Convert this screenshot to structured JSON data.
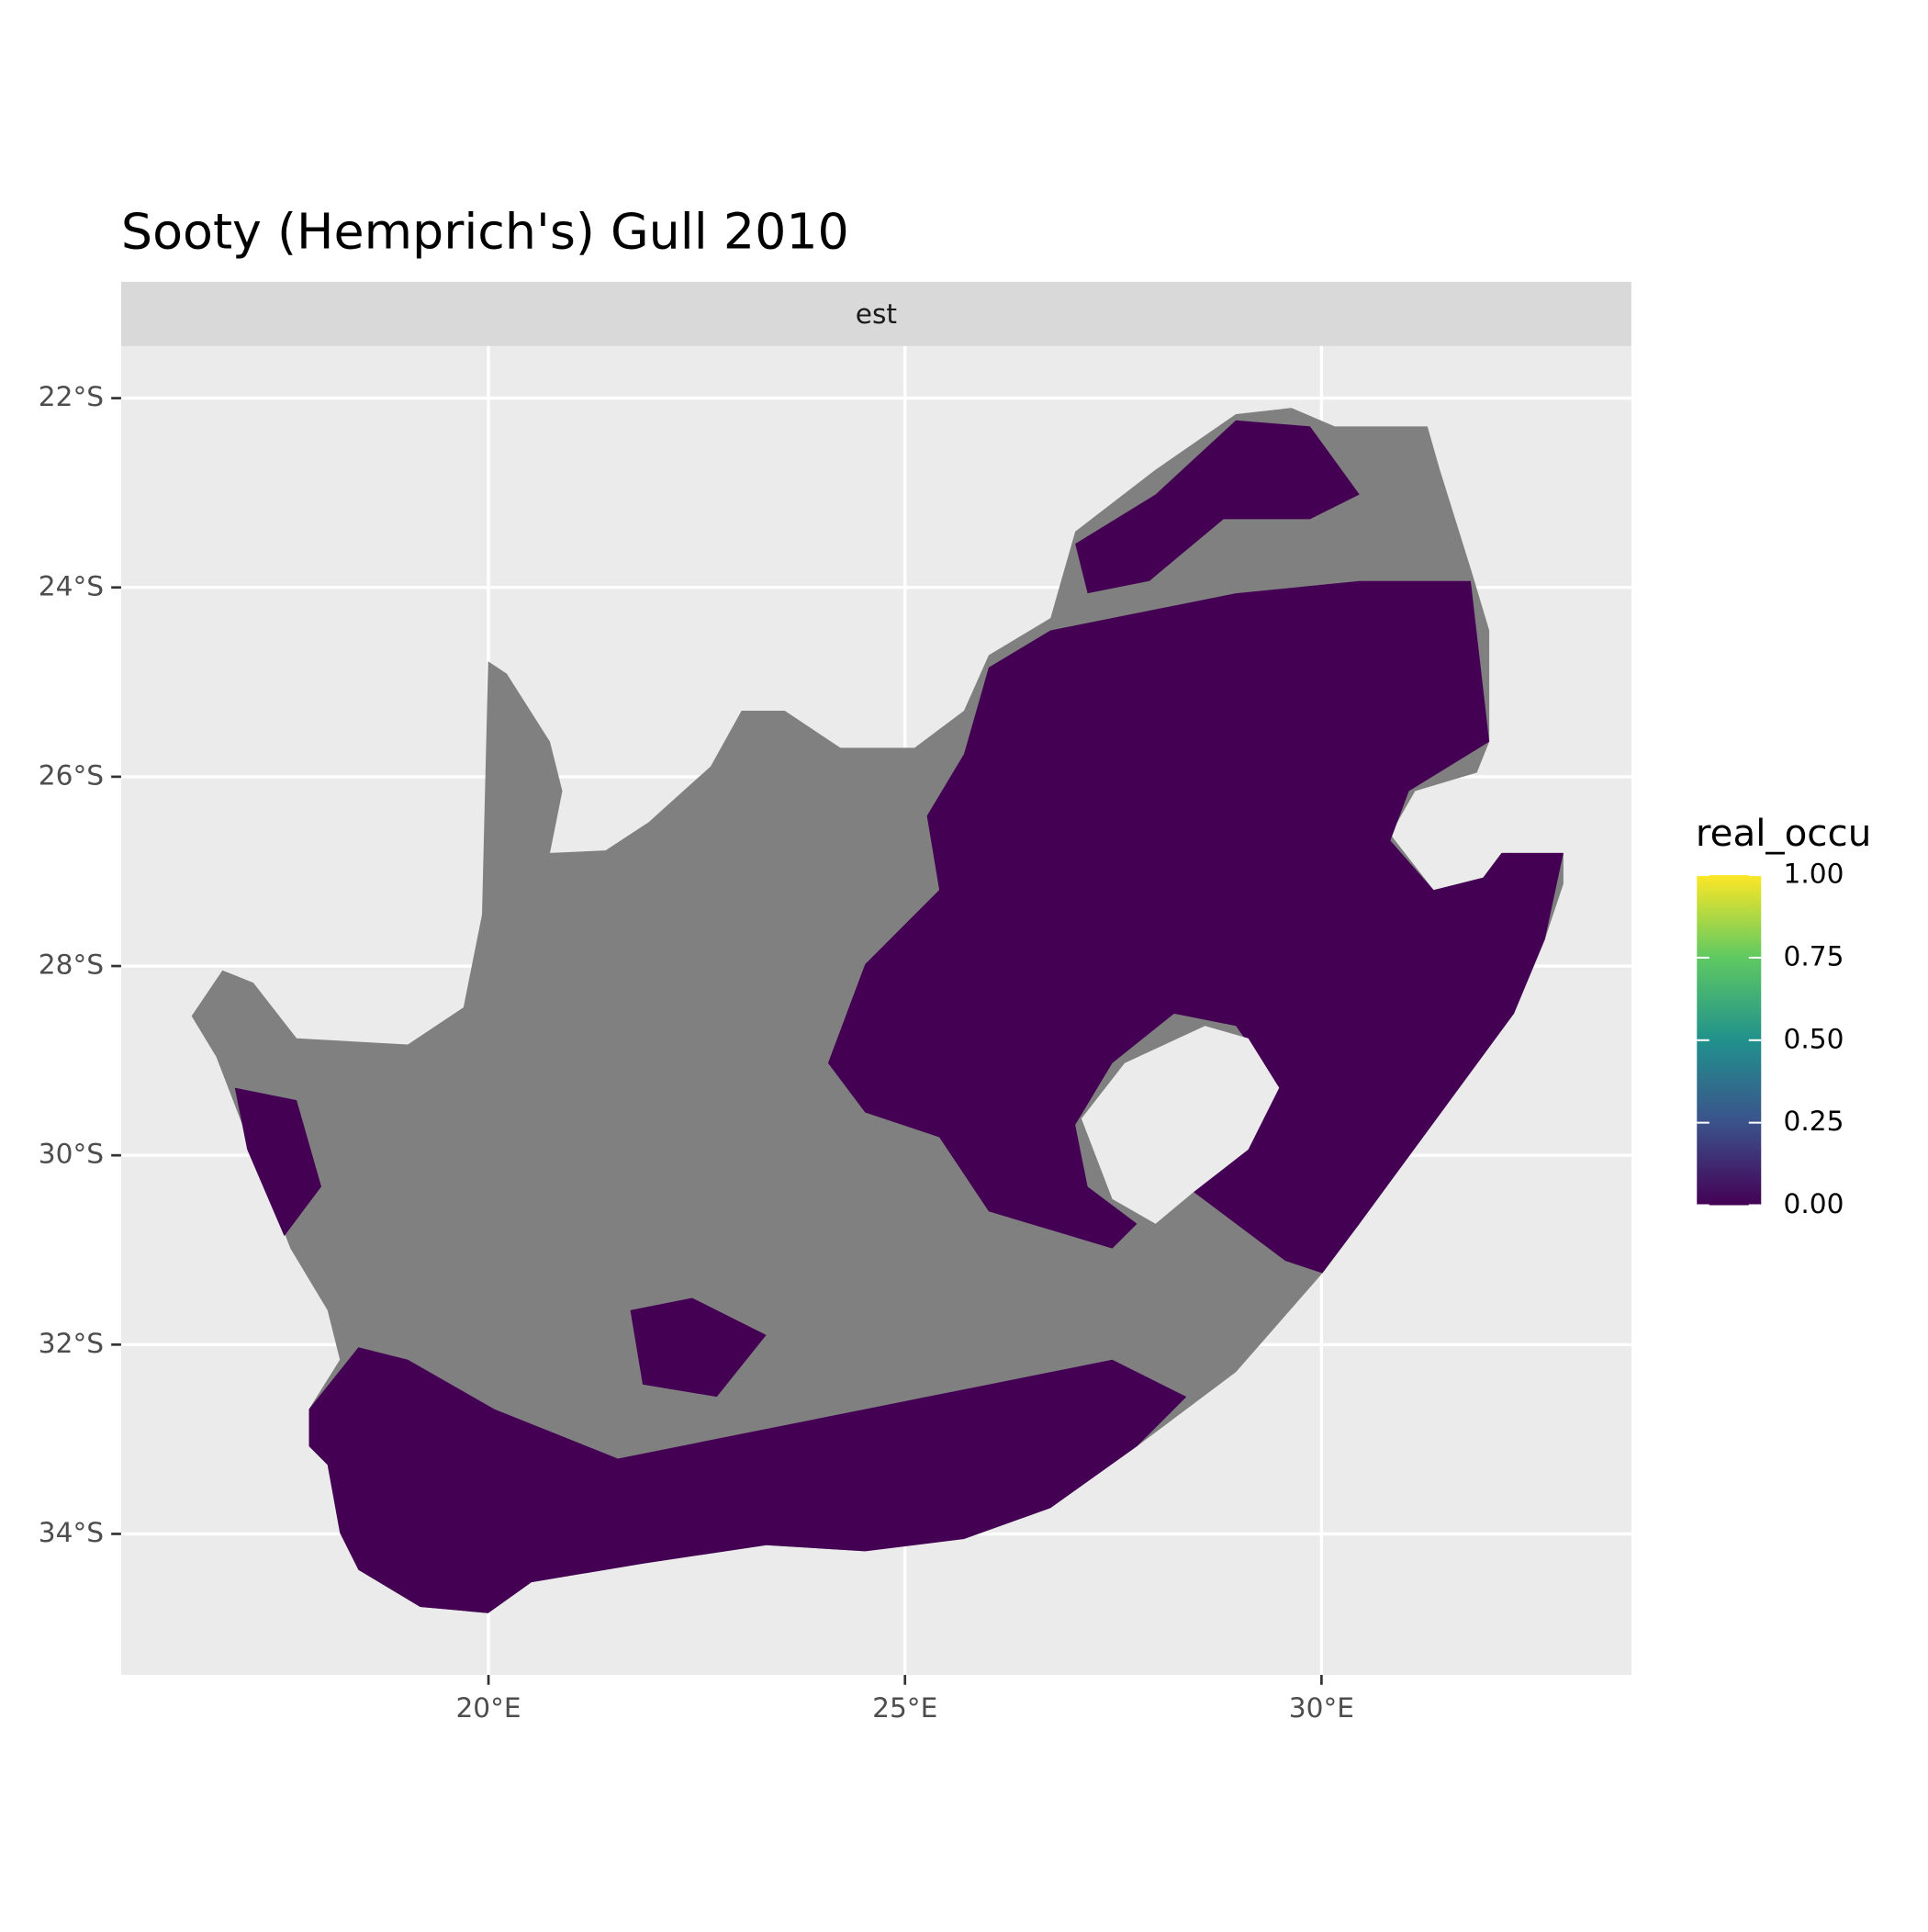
{
  "chart_data": {
    "type": "raster-map",
    "title": "Sooty (Hemprich's) Gull 2010",
    "facet": "est",
    "xlim": [
      15.59,
      33.72
    ],
    "ylim": [
      -35.49,
      -21.45
    ],
    "xticks": [
      {
        "value": 20,
        "label": "20°E"
      },
      {
        "value": 25,
        "label": "25°E"
      },
      {
        "value": 30,
        "label": "30°E"
      }
    ],
    "yticks": [
      {
        "value": -22,
        "label": "22°S"
      },
      {
        "value": -24,
        "label": "24°S"
      },
      {
        "value": -26,
        "label": "26°S"
      },
      {
        "value": -28,
        "label": "28°S"
      },
      {
        "value": -30,
        "label": "30°S"
      },
      {
        "value": -32,
        "label": "32°S"
      },
      {
        "value": -34,
        "label": "34°S"
      }
    ],
    "grid": true,
    "na_color": "#808080",
    "low_color": "#440154",
    "legend": {
      "title": "real_occu",
      "lim": [
        0,
        1
      ],
      "ticks": [
        {
          "value": 0,
          "label": "0.00"
        },
        {
          "value": 0.25,
          "label": "0.25"
        },
        {
          "value": 0.5,
          "label": "0.50"
        },
        {
          "value": 0.75,
          "label": "0.75"
        },
        {
          "value": 1,
          "label": "1.00"
        }
      ],
      "colors": [
        "#440154",
        "#3b528b",
        "#21918c",
        "#5ec962",
        "#fde725"
      ]
    }
  }
}
